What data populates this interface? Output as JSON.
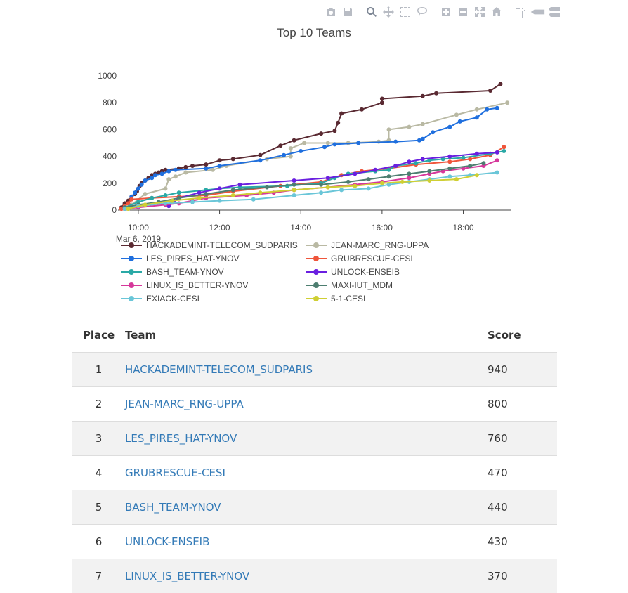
{
  "modebar": {
    "buttons": [
      {
        "name": "camera-icon"
      },
      {
        "name": "save-icon"
      },
      {
        "name": "zoom-icon"
      },
      {
        "name": "pan-icon"
      },
      {
        "name": "box-select-icon"
      },
      {
        "name": "lasso-select-icon"
      },
      {
        "name": "zoom-in-icon"
      },
      {
        "name": "zoom-out-icon"
      },
      {
        "name": "autoscale-icon"
      },
      {
        "name": "reset-axes-icon"
      },
      {
        "name": "spike-lines-icon"
      },
      {
        "name": "hover-closest-icon"
      },
      {
        "name": "hover-compare-icon"
      }
    ]
  },
  "chart_data": {
    "type": "line",
    "title": "Top 10 Teams",
    "xlabel": "",
    "ylabel": "",
    "x_range": [
      "2019-03-06 09:30",
      "2019-03-06 19:10"
    ],
    "ylim": [
      0,
      1000
    ],
    "x_ticks": [
      "10:00",
      "12:00",
      "14:00",
      "16:00",
      "18:00"
    ],
    "x_tick_secondary": "Mar 6, 2019",
    "y_ticks": [
      "0",
      "200",
      "400",
      "600",
      "800",
      "1000"
    ],
    "grid": false,
    "legend_position": "bottom",
    "series": [
      {
        "name": "HACKADEMINT-TELECOM_SUDPARIS",
        "color": "#5a2a32",
        "points": [
          [
            "09:35",
            20
          ],
          [
            "09:40",
            50
          ],
          [
            "09:45",
            70
          ],
          [
            "09:50",
            100
          ],
          [
            "09:55",
            120
          ],
          [
            "09:58",
            140
          ],
          [
            "10:00",
            160
          ],
          [
            "10:02",
            180
          ],
          [
            "10:05",
            200
          ],
          [
            "10:10",
            220
          ],
          [
            "10:15",
            240
          ],
          [
            "10:20",
            260
          ],
          [
            "10:25",
            270
          ],
          [
            "10:30",
            280
          ],
          [
            "10:35",
            290
          ],
          [
            "10:40",
            300
          ],
          [
            "11:00",
            310
          ],
          [
            "11:10",
            320
          ],
          [
            "11:20",
            330
          ],
          [
            "11:40",
            340
          ],
          [
            "12:00",
            370
          ],
          [
            "12:20",
            380
          ],
          [
            "13:00",
            410
          ],
          [
            "13:30",
            480
          ],
          [
            "13:50",
            520
          ],
          [
            "14:30",
            570
          ],
          [
            "14:50",
            590
          ],
          [
            "14:55",
            650
          ],
          [
            "15:00",
            720
          ],
          [
            "15:30",
            750
          ],
          [
            "16:00",
            800
          ],
          [
            "16:00",
            830
          ],
          [
            "17:00",
            850
          ],
          [
            "17:20",
            870
          ],
          [
            "18:40",
            890
          ],
          [
            "18:55",
            940
          ]
        ]
      },
      {
        "name": "JEAN-MARC_RNG-UPPA",
        "color": "#b9b9a3",
        "points": [
          [
            "09:35",
            10
          ],
          [
            "09:50",
            40
          ],
          [
            "10:10",
            120
          ],
          [
            "10:40",
            160
          ],
          [
            "10:45",
            230
          ],
          [
            "10:55",
            250
          ],
          [
            "11:10",
            280
          ],
          [
            "11:50",
            300
          ],
          [
            "12:10",
            330
          ],
          [
            "13:10",
            380
          ],
          [
            "13:45",
            400
          ],
          [
            "13:45",
            460
          ],
          [
            "14:05",
            500
          ],
          [
            "14:40",
            500
          ],
          [
            "15:10",
            500
          ],
          [
            "15:55",
            510
          ],
          [
            "16:10",
            520
          ],
          [
            "16:10",
            600
          ],
          [
            "16:40",
            620
          ],
          [
            "17:00",
            640
          ],
          [
            "17:50",
            710
          ],
          [
            "18:20",
            750
          ],
          [
            "19:05",
            800
          ]
        ]
      },
      {
        "name": "LES_PIRES_HAT-YNOV",
        "color": "#1f6fde",
        "points": [
          [
            "09:50",
            100
          ],
          [
            "09:55",
            130
          ],
          [
            "10:00",
            160
          ],
          [
            "10:05",
            190
          ],
          [
            "10:10",
            220
          ],
          [
            "10:20",
            240
          ],
          [
            "10:25",
            260
          ],
          [
            "10:35",
            270
          ],
          [
            "10:45",
            290
          ],
          [
            "10:55",
            300
          ],
          [
            "11:40",
            310
          ],
          [
            "12:00",
            330
          ],
          [
            "13:00",
            370
          ],
          [
            "13:35",
            410
          ],
          [
            "14:00",
            440
          ],
          [
            "14:35",
            470
          ],
          [
            "14:50",
            490
          ],
          [
            "15:25",
            500
          ],
          [
            "16:20",
            510
          ],
          [
            "16:55",
            520
          ],
          [
            "17:00",
            530
          ],
          [
            "17:15",
            580
          ],
          [
            "17:40",
            620
          ],
          [
            "17:55",
            660
          ],
          [
            "18:20",
            690
          ],
          [
            "18:35",
            750
          ],
          [
            "18:50",
            760
          ]
        ]
      },
      {
        "name": "GRUBRESCUE-CESI",
        "color": "#ef553b",
        "points": [
          [
            "09:35",
            10
          ],
          [
            "09:40",
            30
          ],
          [
            "09:45",
            50
          ],
          [
            "09:50",
            80
          ],
          [
            "10:20",
            90
          ],
          [
            "11:00",
            100
          ],
          [
            "11:40",
            110
          ],
          [
            "12:20",
            140
          ],
          [
            "13:30",
            180
          ],
          [
            "14:30",
            210
          ],
          [
            "15:00",
            260
          ],
          [
            "15:30",
            290
          ],
          [
            "16:10",
            310
          ],
          [
            "16:50",
            340
          ],
          [
            "17:40",
            360
          ],
          [
            "18:10",
            380
          ],
          [
            "18:40",
            410
          ],
          [
            "19:00",
            470
          ]
        ]
      },
      {
        "name": "BASH_TEAM-YNOV",
        "color": "#2aa9a6",
        "points": [
          [
            "09:40",
            20
          ],
          [
            "10:00",
            60
          ],
          [
            "10:20",
            90
          ],
          [
            "10:40",
            110
          ],
          [
            "11:00",
            130
          ],
          [
            "11:40",
            150
          ],
          [
            "12:00",
            160
          ],
          [
            "12:30",
            170
          ],
          [
            "13:40",
            180
          ],
          [
            "14:30",
            200
          ],
          [
            "14:50",
            240
          ],
          [
            "15:10",
            270
          ],
          [
            "15:50",
            290
          ],
          [
            "16:10",
            300
          ],
          [
            "16:20",
            330
          ],
          [
            "16:50",
            350
          ],
          [
            "17:10",
            370
          ],
          [
            "17:30",
            380
          ],
          [
            "18:00",
            390
          ],
          [
            "18:40",
            420
          ],
          [
            "19:00",
            440
          ]
        ]
      },
      {
        "name": "UNLOCK-ENSEIB",
        "color": "#6a1fe0",
        "points": [
          [
            "10:45",
            30
          ],
          [
            "11:00",
            90
          ],
          [
            "11:30",
            130
          ],
          [
            "12:00",
            160
          ],
          [
            "12:30",
            190
          ],
          [
            "13:50",
            220
          ],
          [
            "14:40",
            240
          ],
          [
            "15:20",
            270
          ],
          [
            "15:50",
            300
          ],
          [
            "16:20",
            330
          ],
          [
            "16:40",
            360
          ],
          [
            "17:00",
            380
          ],
          [
            "17:40",
            400
          ],
          [
            "18:20",
            420
          ],
          [
            "18:50",
            430
          ]
        ]
      },
      {
        "name": "LINUX_IS_BETTER-YNOV",
        "color": "#d6389b",
        "points": [
          [
            "09:40",
            10
          ],
          [
            "10:00",
            20
          ],
          [
            "10:40",
            40
          ],
          [
            "11:00",
            50
          ],
          [
            "11:20",
            70
          ],
          [
            "11:40",
            90
          ],
          [
            "12:40",
            110
          ],
          [
            "13:20",
            130
          ],
          [
            "13:50",
            150
          ],
          [
            "14:40",
            170
          ],
          [
            "15:20",
            190
          ],
          [
            "16:00",
            210
          ],
          [
            "16:40",
            240
          ],
          [
            "17:10",
            270
          ],
          [
            "17:30",
            290
          ],
          [
            "18:00",
            310
          ],
          [
            "18:30",
            330
          ],
          [
            "18:50",
            370
          ]
        ]
      },
      {
        "name": "MAXI-IUT_MDM",
        "color": "#4d7e70",
        "points": [
          [
            "09:40",
            20
          ],
          [
            "10:00",
            40
          ],
          [
            "10:30",
            60
          ],
          [
            "11:00",
            90
          ],
          [
            "11:40",
            120
          ],
          [
            "12:20",
            150
          ],
          [
            "13:10",
            170
          ],
          [
            "13:50",
            190
          ],
          [
            "14:30",
            190
          ],
          [
            "15:10",
            210
          ],
          [
            "15:40",
            230
          ],
          [
            "16:10",
            250
          ],
          [
            "16:40",
            270
          ],
          [
            "17:10",
            290
          ],
          [
            "17:40",
            310
          ],
          [
            "18:10",
            330
          ],
          [
            "18:30",
            350
          ]
        ]
      },
      {
        "name": "EXIACK-CESI",
        "color": "#6ac6d8",
        "points": [
          [
            "09:40",
            10
          ],
          [
            "10:00",
            30
          ],
          [
            "10:40",
            50
          ],
          [
            "11:20",
            60
          ],
          [
            "12:00",
            70
          ],
          [
            "12:50",
            80
          ],
          [
            "13:50",
            110
          ],
          [
            "14:30",
            130
          ],
          [
            "15:00",
            150
          ],
          [
            "15:40",
            160
          ],
          [
            "16:10",
            190
          ],
          [
            "16:40",
            210
          ],
          [
            "17:10",
            230
          ],
          [
            "17:40",
            250
          ],
          [
            "18:10",
            260
          ],
          [
            "18:50",
            280
          ]
        ]
      },
      {
        "name": "5-1-CESI",
        "color": "#cfcf33",
        "points": [
          [
            "09:45",
            10
          ],
          [
            "10:10",
            40
          ],
          [
            "10:50",
            70
          ],
          [
            "11:30",
            90
          ],
          [
            "12:20",
            110
          ],
          [
            "13:00",
            130
          ],
          [
            "13:50",
            150
          ],
          [
            "14:40",
            170
          ],
          [
            "15:20",
            180
          ],
          [
            "16:00",
            200
          ],
          [
            "16:30",
            210
          ],
          [
            "17:10",
            220
          ],
          [
            "17:50",
            230
          ],
          [
            "18:20",
            260
          ]
        ]
      }
    ]
  },
  "table": {
    "headers": {
      "place": "Place",
      "team": "Team",
      "score": "Score"
    },
    "rows": [
      {
        "place": "1",
        "team": "HACKADEMINT-TELECOM_SUDPARIS",
        "score": "940"
      },
      {
        "place": "2",
        "team": "JEAN-MARC_RNG-UPPA",
        "score": "800"
      },
      {
        "place": "3",
        "team": "LES_PIRES_HAT-YNOV",
        "score": "760"
      },
      {
        "place": "4",
        "team": "GRUBRESCUE-CESI",
        "score": "470"
      },
      {
        "place": "5",
        "team": "BASH_TEAM-YNOV",
        "score": "440"
      },
      {
        "place": "6",
        "team": "UNLOCK-ENSEIB",
        "score": "430"
      },
      {
        "place": "7",
        "team": "LINUX_IS_BETTER-YNOV",
        "score": "370"
      }
    ]
  }
}
